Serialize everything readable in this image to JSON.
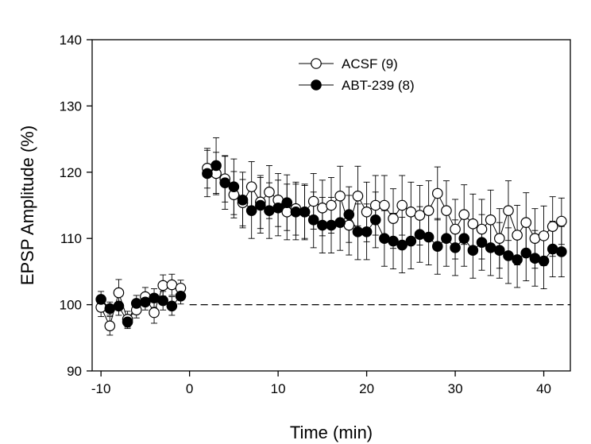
{
  "chart_data": {
    "type": "scatter",
    "xlabel": "Time (min)",
    "ylabel": "EPSP Amplitude (%)",
    "xlim": [
      -11,
      43
    ],
    "ylim": [
      90,
      140
    ],
    "xticks": [
      -10,
      0,
      10,
      20,
      30,
      40
    ],
    "yticks": [
      90,
      100,
      110,
      120,
      130,
      140
    ],
    "xtick_labels": [
      "-10",
      "0",
      "10",
      "20",
      "30",
      "40"
    ],
    "ytick_labels": [
      "90",
      "100",
      "110",
      "120",
      "130",
      "140"
    ],
    "reference_line": {
      "y": 100,
      "style": "dashed"
    },
    "grid": false,
    "legend_position": "top-center",
    "series": [
      {
        "name": "ACSF (9)",
        "marker": "open-circle",
        "connected": true,
        "color": "#000000",
        "points": [
          [
            -10,
            99.6,
            1.4
          ],
          [
            -9,
            96.8,
            1.4
          ],
          [
            -8,
            101.8,
            2.0
          ],
          [
            -7,
            97.8,
            1.2
          ],
          [
            -6,
            99.2,
            1.2
          ],
          [
            -5,
            101.2,
            1.4
          ],
          [
            -4,
            98.8,
            1.6
          ],
          [
            -3,
            102.9,
            1.6
          ],
          [
            -2,
            103.0,
            1.6
          ],
          [
            -1,
            102.5,
            1.2
          ],
          [
            2,
            120.6,
            3.0
          ],
          [
            3,
            119.8,
            3.2
          ],
          [
            4,
            119.0,
            3.5
          ],
          [
            5,
            116.6,
            3.5
          ],
          [
            6,
            115.4,
            3.5
          ],
          [
            7,
            117.8,
            3.8
          ],
          [
            8,
            115.5,
            4.0
          ],
          [
            9,
            117.0,
            4.0
          ],
          [
            10,
            115.8,
            4.0
          ],
          [
            11,
            114.0,
            4.2
          ],
          [
            12,
            114.5,
            4.0
          ],
          [
            13,
            114.0,
            4.0
          ],
          [
            14,
            115.6,
            4.2
          ],
          [
            15,
            114.6,
            4.2
          ],
          [
            16,
            115.0,
            4.2
          ],
          [
            17,
            116.4,
            4.5
          ],
          [
            18,
            112.0,
            4.5
          ],
          [
            19,
            116.4,
            4.5
          ],
          [
            20,
            114.0,
            4.5
          ],
          [
            21,
            115.0,
            4.5
          ],
          [
            22,
            115.0,
            4.5
          ],
          [
            23,
            113.0,
            4.5
          ],
          [
            24,
            115.0,
            4.5
          ],
          [
            25,
            114.0,
            4.5
          ],
          [
            26,
            113.5,
            4.5
          ],
          [
            27,
            114.2,
            4.5
          ],
          [
            28,
            116.8,
            4.0
          ],
          [
            29,
            114.2,
            4.5
          ],
          [
            30,
            111.4,
            4.5
          ],
          [
            31,
            113.6,
            4.5
          ],
          [
            32,
            112.2,
            4.5
          ],
          [
            33,
            111.4,
            4.5
          ],
          [
            34,
            112.8,
            4.5
          ],
          [
            35,
            110.0,
            4.5
          ],
          [
            36,
            114.2,
            4.5
          ],
          [
            37,
            110.5,
            4.5
          ],
          [
            38,
            112.4,
            4.5
          ],
          [
            39,
            110.0,
            4.5
          ],
          [
            40,
            110.4,
            4.5
          ],
          [
            41,
            111.8,
            4.5
          ],
          [
            42,
            112.6,
            3.5
          ]
        ]
      },
      {
        "name": "ABT-239 (8)",
        "marker": "filled-circle",
        "connected": true,
        "color": "#000000",
        "points": [
          [
            -10,
            100.8,
            1.2
          ],
          [
            -9,
            99.4,
            1.0
          ],
          [
            -8,
            99.8,
            1.4
          ],
          [
            -7,
            97.4,
            1.0
          ],
          [
            -6,
            100.2,
            1.2
          ],
          [
            -5,
            100.4,
            1.2
          ],
          [
            -4,
            101.0,
            1.4
          ],
          [
            -3,
            100.6,
            1.4
          ],
          [
            -2,
            99.8,
            1.4
          ],
          [
            -1,
            101.3,
            1.2
          ],
          [
            2,
            119.8,
            3.5
          ],
          [
            3,
            121.0,
            4.2
          ],
          [
            4,
            118.4,
            4.0
          ],
          [
            5,
            117.8,
            4.2
          ],
          [
            6,
            115.8,
            4.2
          ],
          [
            7,
            114.2,
            4.2
          ],
          [
            8,
            115.0,
            4.2
          ],
          [
            9,
            114.2,
            4.2
          ],
          [
            10,
            114.6,
            4.2
          ],
          [
            11,
            115.4,
            4.2
          ],
          [
            12,
            114.0,
            4.2
          ],
          [
            13,
            114.0,
            4.2
          ],
          [
            14,
            112.8,
            4.2
          ],
          [
            15,
            112.0,
            4.2
          ],
          [
            16,
            112.0,
            4.2
          ],
          [
            17,
            112.4,
            4.2
          ],
          [
            18,
            113.6,
            4.2
          ],
          [
            19,
            111.0,
            4.2
          ],
          [
            20,
            111.0,
            4.2
          ],
          [
            21,
            112.8,
            4.2
          ],
          [
            22,
            110.0,
            4.2
          ],
          [
            23,
            109.6,
            4.2
          ],
          [
            24,
            109.0,
            4.2
          ],
          [
            25,
            109.6,
            4.2
          ],
          [
            26,
            110.6,
            4.2
          ],
          [
            27,
            110.2,
            4.2
          ],
          [
            28,
            108.8,
            4.2
          ],
          [
            29,
            110.0,
            4.2
          ],
          [
            30,
            108.6,
            4.2
          ],
          [
            31,
            110.0,
            4.2
          ],
          [
            32,
            108.2,
            4.2
          ],
          [
            33,
            109.4,
            4.2
          ],
          [
            34,
            108.6,
            4.2
          ],
          [
            35,
            108.2,
            4.2
          ],
          [
            36,
            107.4,
            4.2
          ],
          [
            37,
            106.8,
            4.2
          ],
          [
            38,
            107.8,
            4.2
          ],
          [
            39,
            107.0,
            4.2
          ],
          [
            40,
            106.6,
            4.2
          ],
          [
            41,
            108.4,
            4.2
          ],
          [
            42,
            108.0,
            3.8
          ]
        ]
      }
    ]
  }
}
